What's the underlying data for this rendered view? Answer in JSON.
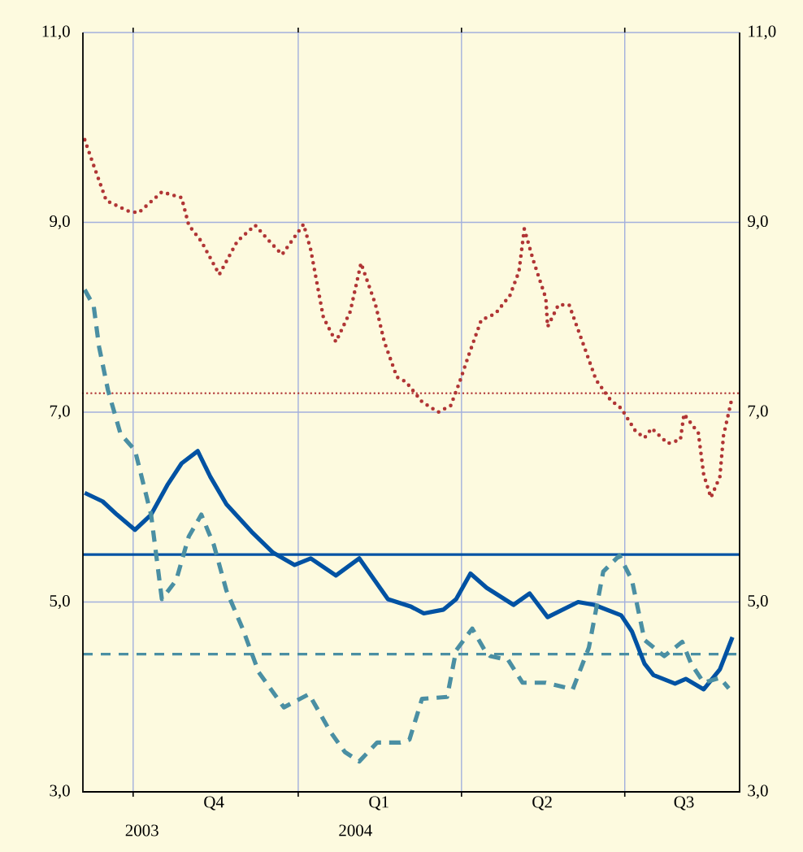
{
  "chart_data": {
    "type": "line",
    "xlim": [
      "2003-09-03",
      "2004-09-03"
    ],
    "xticks": [
      {
        "value": "2003-10-01",
        "label": null
      },
      {
        "value": "2004-01-01",
        "label": null
      },
      {
        "value": "2004-04-01",
        "label": null
      },
      {
        "value": "2004-07-01",
        "label": null
      },
      {
        "value": "2003-11-15",
        "label": "Q4"
      },
      {
        "value": "2004-02-15",
        "label": "Q1"
      },
      {
        "value": "2004-05-16",
        "label": "Q2"
      },
      {
        "value": "2004-08-03",
        "label": "Q3"
      }
    ],
    "ylim": [
      3,
      11
    ],
    "yticks": [
      {
        "value": 3,
        "label": "3,0"
      },
      {
        "value": 5,
        "label": "5,0"
      },
      {
        "value": 7,
        "label": "7,0"
      },
      {
        "value": 9,
        "label": "9,0"
      },
      {
        "value": 11,
        "label": "11,0"
      }
    ],
    "y2lim": [
      3,
      11
    ],
    "y2ticks": [
      {
        "value": 3,
        "label": "3,0"
      },
      {
        "value": 5,
        "label": "5,0"
      },
      {
        "value": 7,
        "label": "7,0"
      },
      {
        "value": 9,
        "label": "9,0"
      },
      {
        "value": 11,
        "label": "11,0"
      }
    ],
    "grid": true,
    "series": [
      {
        "color": "#b03535",
        "line_style": "dotted",
        "x": [
          "2003-09-04",
          "2003-09-09",
          "2003-09-16",
          "2003-09-28",
          "2003-10-04",
          "2003-10-17",
          "2003-10-28",
          "2003-11-01",
          "2003-11-08",
          "2003-11-18",
          "2003-11-28",
          "2003-12-08",
          "2003-12-16",
          "2003-12-23",
          "2004-01-04",
          "2004-01-08",
          "2004-01-15",
          "2004-01-22",
          "2004-01-30",
          "2004-02-05",
          "2004-02-13",
          "2004-02-18",
          "2004-02-25",
          "2004-03-01",
          "2004-03-10",
          "2004-03-19",
          "2004-03-26",
          "2004-03-31",
          "2004-04-05",
          "2004-04-12",
          "2004-04-20",
          "2004-04-28",
          "2004-05-03",
          "2004-05-06",
          "2004-05-11",
          "2004-05-18",
          "2004-05-19",
          "2004-05-25",
          "2004-05-31",
          "2004-06-08",
          "2004-06-15",
          "2004-06-23",
          "2004-06-29",
          "2004-07-07",
          "2004-07-12",
          "2004-07-16",
          "2004-07-25",
          "2004-08-01",
          "2004-08-03",
          "2004-08-11",
          "2004-08-14",
          "2004-08-18",
          "2004-08-23",
          "2004-08-25",
          "2004-08-30"
        ],
        "values": [
          9.87,
          9.6,
          9.23,
          9.12,
          9.1,
          9.32,
          9.26,
          8.97,
          8.8,
          8.45,
          8.8,
          8.97,
          8.8,
          8.66,
          8.98,
          8.71,
          8.0,
          7.74,
          8.06,
          8.57,
          8.14,
          7.74,
          7.37,
          7.32,
          7.11,
          7.0,
          7.07,
          7.32,
          7.6,
          7.97,
          8.04,
          8.23,
          8.48,
          8.93,
          8.6,
          8.2,
          7.9,
          8.13,
          8.13,
          7.71,
          7.34,
          7.13,
          7.04,
          6.8,
          6.73,
          6.83,
          6.67,
          6.71,
          6.98,
          6.78,
          6.34,
          6.1,
          6.32,
          6.75,
          7.17
        ]
      },
      {
        "color": "#0052a3",
        "line_style": "solid",
        "x": [
          "2003-09-04",
          "2003-09-14",
          "2003-09-22",
          "2003-10-02",
          "2003-10-11",
          "2003-10-20",
          "2003-10-28",
          "2003-11-06",
          "2003-11-13",
          "2003-11-22",
          "2003-12-06",
          "2003-12-18",
          "2003-12-30",
          "2004-01-08",
          "2004-01-22",
          "2004-02-04",
          "2004-02-20",
          "2004-03-04",
          "2004-03-11",
          "2004-03-22",
          "2004-03-29",
          "2004-04-06",
          "2004-04-15",
          "2004-04-30",
          "2004-05-09",
          "2004-05-19",
          "2004-06-05",
          "2004-06-14",
          "2004-06-29",
          "2004-07-05",
          "2004-07-12",
          "2004-07-17",
          "2004-07-29",
          "2004-08-04",
          "2004-08-14",
          "2004-08-23",
          "2004-08-30"
        ],
        "values": [
          6.15,
          6.06,
          5.92,
          5.76,
          5.92,
          6.23,
          6.46,
          6.59,
          6.32,
          6.03,
          5.74,
          5.52,
          5.39,
          5.46,
          5.28,
          5.46,
          5.03,
          4.95,
          4.88,
          4.92,
          5.03,
          5.3,
          5.15,
          4.97,
          5.09,
          4.84,
          5.0,
          4.97,
          4.86,
          4.69,
          4.35,
          4.23,
          4.14,
          4.19,
          4.08,
          4.29,
          4.63
        ]
      },
      {
        "color": "#4a8fa3",
        "line_style": "dashed",
        "x": [
          "2003-09-04",
          "2003-09-09",
          "2003-09-12",
          "2003-09-17",
          "2003-09-24",
          "2003-10-02",
          "2003-10-11",
          "2003-10-17",
          "2003-10-25",
          "2003-11-01",
          "2003-11-08",
          "2003-11-15",
          "2003-11-22",
          "2003-12-01",
          "2003-12-10",
          "2003-12-24",
          "2004-01-07",
          "2004-01-19",
          "2004-01-27",
          "2004-02-04",
          "2004-02-14",
          "2004-02-27",
          "2004-03-03",
          "2004-03-10",
          "2004-03-24",
          "2004-03-29",
          "2004-04-07",
          "2004-04-14",
          "2004-04-17",
          "2004-04-27",
          "2004-05-05",
          "2004-05-18",
          "2004-06-02",
          "2004-06-11",
          "2004-06-19",
          "2004-06-28",
          "2004-07-05",
          "2004-07-12",
          "2004-07-23",
          "2004-08-02",
          "2004-08-07",
          "2004-08-14",
          "2004-08-23",
          "2004-08-28"
        ],
        "values": [
          8.29,
          8.12,
          7.69,
          7.23,
          6.77,
          6.6,
          5.92,
          5.03,
          5.23,
          5.69,
          5.92,
          5.6,
          5.12,
          4.72,
          4.26,
          3.89,
          4.03,
          3.63,
          3.42,
          3.32,
          3.52,
          3.52,
          3.55,
          3.98,
          4.0,
          4.49,
          4.72,
          4.49,
          4.43,
          4.39,
          4.15,
          4.15,
          4.08,
          4.52,
          5.32,
          5.49,
          5.23,
          4.6,
          4.43,
          4.58,
          4.35,
          4.15,
          4.2,
          4.09
        ]
      }
    ],
    "ref_lines": [
      {
        "axis": "y",
        "value": 7.2,
        "color": "#b03535",
        "line_style": "dotted"
      },
      {
        "axis": "y",
        "value": 5.5,
        "color": "#0052a3",
        "line_style": "solid"
      },
      {
        "axis": "y",
        "value": 4.45,
        "color": "#4a8fa3",
        "line_style": "dashed"
      }
    ],
    "annotations": [
      "2003",
      "2004"
    ]
  }
}
